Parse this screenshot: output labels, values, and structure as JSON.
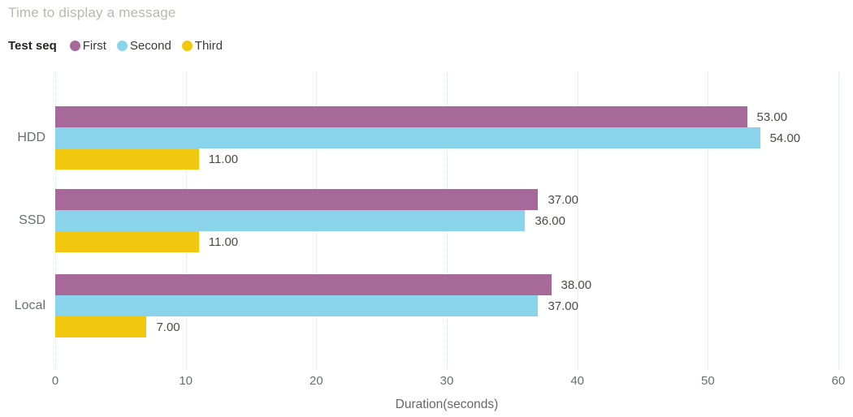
{
  "title": "Time to display a message",
  "legend": {
    "title": "Test seq",
    "items": [
      {
        "label": "First",
        "color": "#A66999"
      },
      {
        "label": "Second",
        "color": "#8AD4EB"
      },
      {
        "label": "Third",
        "color": "#F2C80F"
      }
    ]
  },
  "chart_data": {
    "type": "bar",
    "orientation": "horizontal",
    "title": "Time to display a message",
    "xlabel": "Duration(seconds)",
    "ylabel": "",
    "xlim": [
      0,
      60
    ],
    "xticks": [
      0,
      10,
      20,
      30,
      40,
      50,
      60
    ],
    "grid": "vertical-dotted",
    "legend_position": "top",
    "categories": [
      "HDD",
      "SSD",
      "Local"
    ],
    "series": [
      {
        "name": "First",
        "color": "#A66999",
        "values": [
          53,
          37,
          38
        ]
      },
      {
        "name": "Second",
        "color": "#8AD4EB",
        "values": [
          54,
          36,
          37
        ]
      },
      {
        "name": "Third",
        "color": "#F2C80F",
        "values": [
          11,
          11,
          7
        ]
      }
    ],
    "data_label_format": "0.00"
  },
  "colors": {
    "title_text": "#B9B6B3",
    "axis_text": "#6A6D70",
    "data_label_text": "#4C4A48",
    "gridline": "#DCE1E1",
    "background": "#FFFFFF"
  }
}
